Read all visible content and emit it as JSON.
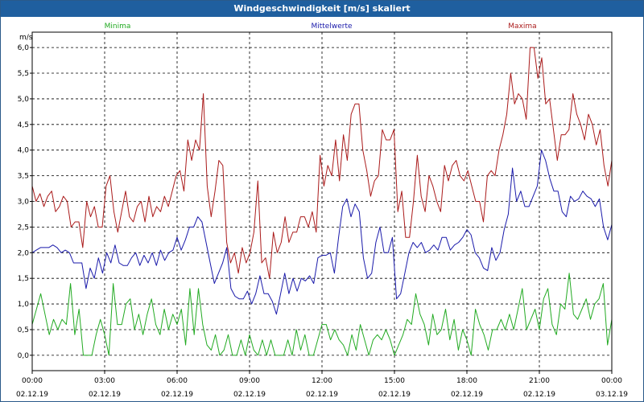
{
  "window": {
    "title": "Windgeschwindigkeit [m/s] skaliert"
  },
  "chart_data": {
    "type": "line",
    "ylabel": "m/s",
    "ylim": [
      -0.3,
      6.3
    ],
    "yticks": [
      "0,0",
      "0,5",
      "1,0",
      "1,5",
      "2,0",
      "2,5",
      "3,0",
      "3,5",
      "4,0",
      "4,5",
      "5,0",
      "5,5",
      "6,0"
    ],
    "xticks": [
      {
        "time": "00:00",
        "date": "02.12.19"
      },
      {
        "time": "03:00",
        "date": "02.12.19"
      },
      {
        "time": "06:00",
        "date": "02.12.19"
      },
      {
        "time": "09:00",
        "date": "02.12.19"
      },
      {
        "time": "12:00",
        "date": "02.12.19"
      },
      {
        "time": "15:00",
        "date": "02.12.19"
      },
      {
        "time": "18:00",
        "date": "02.12.19"
      },
      {
        "time": "21:00",
        "date": "02.12.19"
      },
      {
        "time": "00:00",
        "date": "03.12.19"
      }
    ],
    "x_range_hours": [
      0,
      24
    ],
    "grid": true,
    "series": [
      {
        "name": "Minima",
        "color": "#22aa22",
        "values": [
          0.6,
          0.9,
          1.2,
          0.8,
          0.4,
          0.7,
          0.5,
          0.7,
          0.6,
          1.4,
          0.4,
          0.9,
          0.0,
          0.0,
          0.0,
          0.4,
          0.7,
          0.4,
          0.0,
          1.4,
          0.6,
          0.6,
          1.0,
          1.1,
          0.5,
          0.8,
          0.4,
          0.8,
          1.1,
          0.6,
          0.4,
          0.9,
          0.5,
          0.8,
          0.6,
          0.9,
          0.2,
          1.3,
          0.4,
          1.3,
          0.6,
          0.2,
          0.1,
          0.4,
          0.0,
          0.1,
          0.4,
          0.0,
          0.0,
          0.3,
          0.0,
          0.4,
          0.1,
          0.0,
          0.3,
          0.0,
          0.3,
          0.0,
          0.0,
          0.0,
          0.3,
          0.0,
          0.5,
          0.1,
          0.4,
          0.0,
          0.0,
          0.3,
          0.6,
          0.6,
          0.3,
          0.5,
          0.3,
          0.2,
          0.0,
          0.4,
          0.1,
          0.6,
          0.3,
          0.0,
          0.3,
          0.4,
          0.3,
          0.5,
          0.3,
          0.0,
          0.2,
          0.4,
          0.7,
          0.6,
          1.2,
          0.8,
          0.6,
          0.2,
          0.8,
          0.4,
          0.5,
          0.9,
          0.3,
          0.7,
          0.1,
          0.5,
          0.3,
          0.0,
          0.9,
          0.6,
          0.4,
          0.1,
          0.5,
          0.5,
          0.7,
          0.5,
          0.8,
          0.5,
          0.9,
          1.3,
          0.5,
          0.7,
          0.9,
          0.5,
          1.1,
          1.3,
          0.6,
          0.4,
          1.0,
          0.9,
          1.6,
          0.8,
          0.7,
          0.9,
          1.1,
          0.7,
          1.0,
          1.1,
          1.4,
          0.2,
          0.7
        ]
      },
      {
        "name": "Mittelwerte",
        "color": "#1a1aaa",
        "values": [
          2.0,
          2.05,
          2.1,
          2.1,
          2.1,
          2.15,
          2.1,
          2.0,
          2.05,
          2.0,
          1.8,
          1.8,
          1.8,
          1.3,
          1.7,
          1.5,
          1.9,
          1.6,
          2.0,
          1.8,
          2.15,
          1.8,
          1.75,
          1.75,
          1.9,
          2.0,
          1.75,
          1.95,
          1.8,
          2.0,
          1.75,
          2.05,
          1.85,
          2.0,
          2.05,
          2.3,
          2.05,
          2.25,
          2.5,
          2.5,
          2.7,
          2.6,
          2.2,
          1.8,
          1.4,
          1.6,
          1.8,
          2.1,
          1.3,
          1.15,
          1.1,
          1.1,
          1.25,
          1.0,
          1.2,
          1.55,
          1.2,
          1.2,
          1.05,
          0.8,
          1.2,
          1.6,
          1.2,
          1.5,
          1.25,
          1.5,
          1.45,
          1.55,
          1.4,
          1.9,
          1.95,
          1.95,
          2.0,
          1.6,
          2.3,
          2.9,
          3.05,
          2.7,
          2.95,
          2.8,
          1.9,
          1.5,
          1.6,
          2.2,
          2.5,
          2.0,
          2.0,
          2.3,
          1.1,
          1.2,
          1.6,
          2.0,
          2.2,
          2.1,
          2.2,
          2.0,
          2.05,
          2.15,
          2.05,
          2.3,
          2.3,
          2.05,
          2.15,
          2.2,
          2.3,
          2.45,
          2.35,
          2.0,
          1.9,
          1.7,
          1.65,
          2.1,
          1.85,
          2.0,
          2.45,
          2.75,
          3.65,
          3.0,
          3.2,
          2.9,
          2.9,
          3.1,
          3.3,
          4.0,
          3.8,
          3.45,
          3.2,
          3.2,
          2.8,
          2.7,
          3.1,
          3.0,
          3.05,
          3.2,
          3.1,
          3.05,
          2.9,
          3.05,
          2.5,
          2.25,
          2.55
        ]
      },
      {
        "name": "Maxima",
        "color": "#aa1a1a",
        "values": [
          3.3,
          3.0,
          3.15,
          2.9,
          3.1,
          3.2,
          2.8,
          2.9,
          3.1,
          3.0,
          2.5,
          2.6,
          2.6,
          2.1,
          3.0,
          2.7,
          2.9,
          2.5,
          2.5,
          3.3,
          3.5,
          2.8,
          2.4,
          2.8,
          3.2,
          2.7,
          2.6,
          2.9,
          3.0,
          2.6,
          3.1,
          2.7,
          2.9,
          2.8,
          3.1,
          2.9,
          3.2,
          3.5,
          3.6,
          3.2,
          4.2,
          3.8,
          4.2,
          4.0,
          5.1,
          3.3,
          2.7,
          3.2,
          3.8,
          3.7,
          2.2,
          1.8,
          2.0,
          1.6,
          2.1,
          1.8,
          2.0,
          2.4,
          3.4,
          1.8,
          1.9,
          1.5,
          2.4,
          2.0,
          2.2,
          2.7,
          2.2,
          2.4,
          2.4,
          2.7,
          2.7,
          2.5,
          2.8,
          2.4,
          3.9,
          3.3,
          3.7,
          3.5,
          4.2,
          3.4,
          4.3,
          3.8,
          4.7,
          4.9,
          4.9,
          4.0,
          3.6,
          3.1,
          3.4,
          3.5,
          4.4,
          4.2,
          4.2,
          4.4,
          2.8,
          3.2,
          2.3,
          2.3,
          3.0,
          3.9,
          3.1,
          2.8,
          3.5,
          3.3,
          3.0,
          2.8,
          3.7,
          3.4,
          3.7,
          3.8,
          3.5,
          3.4,
          3.6,
          3.3,
          3.0,
          3.0,
          2.6,
          3.5,
          3.6,
          3.5,
          4.0,
          4.3,
          4.7,
          5.5,
          4.9,
          5.1,
          5.0,
          4.6,
          6.0,
          6.0,
          5.4,
          5.8,
          4.9,
          5.0,
          4.4,
          3.8,
          4.3,
          4.3,
          4.4,
          5.1,
          4.7,
          4.5,
          4.2,
          4.7,
          4.5,
          4.1,
          4.4,
          3.7,
          3.3,
          3.8
        ]
      }
    ]
  }
}
